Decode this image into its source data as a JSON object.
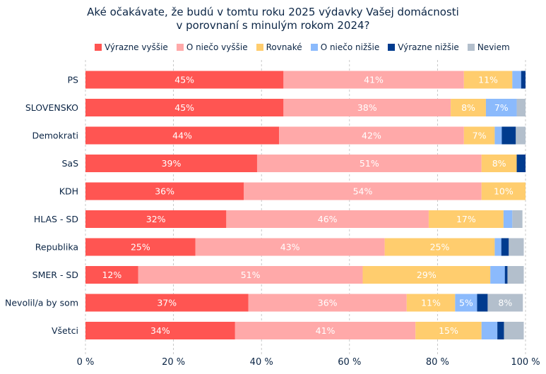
{
  "chart_data": {
    "type": "bar",
    "orientation": "horizontal",
    "stacked": true,
    "title": [
      "Aké očakávate, že budú v tomtu roku 2025 výdavky Vašej domácnosti",
      "v porovnaní s minulým rokom 2024?"
    ],
    "categories": [
      "PS",
      "SLOVENSKO",
      "Demokrati",
      "SaS",
      "KDH",
      "HLAS - SD",
      "Republika",
      "SMER - SD",
      "Nevolil/a by som",
      "Všetci"
    ],
    "series": [
      {
        "name": "Výrazne vyššie",
        "color": "#ff5552",
        "values": [
          45,
          45,
          44,
          39,
          36,
          32,
          25,
          12,
          37,
          34
        ]
      },
      {
        "name": "O niečo vyššie",
        "color": "#ffa9a9",
        "values": [
          41,
          38,
          42,
          51,
          54,
          46,
          43,
          51,
          36,
          41
        ]
      },
      {
        "name": "Rovnaké",
        "color": "#ffcd6e",
        "values": [
          11,
          8,
          7,
          8,
          10,
          17,
          25,
          29,
          11,
          15
        ]
      },
      {
        "name": "O niečo nižšie",
        "color": "#8bbafc",
        "values": [
          2,
          7,
          1.6,
          0,
          0,
          2,
          1.5,
          3.3,
          5,
          3.6
        ]
      },
      {
        "name": "Výrazne nižšie",
        "color": "#003b8e",
        "values": [
          1,
          0,
          3.2,
          3,
          0,
          0,
          1.7,
          0.6,
          2.4,
          1.5
        ]
      },
      {
        "name": "Neviem",
        "color": "#b3bfcc",
        "values": [
          1,
          2.4,
          2.3,
          0,
          0,
          2.3,
          3.4,
          3.7,
          8,
          4.5
        ]
      }
    ],
    "xlim": [
      0,
      100
    ],
    "xticks": [
      "0 %",
      "20 %",
      "40 %",
      "60 %",
      "80 %",
      "100 %"
    ],
    "grid": "vertical dashed",
    "legend": "top",
    "data_label_min": 5
  }
}
